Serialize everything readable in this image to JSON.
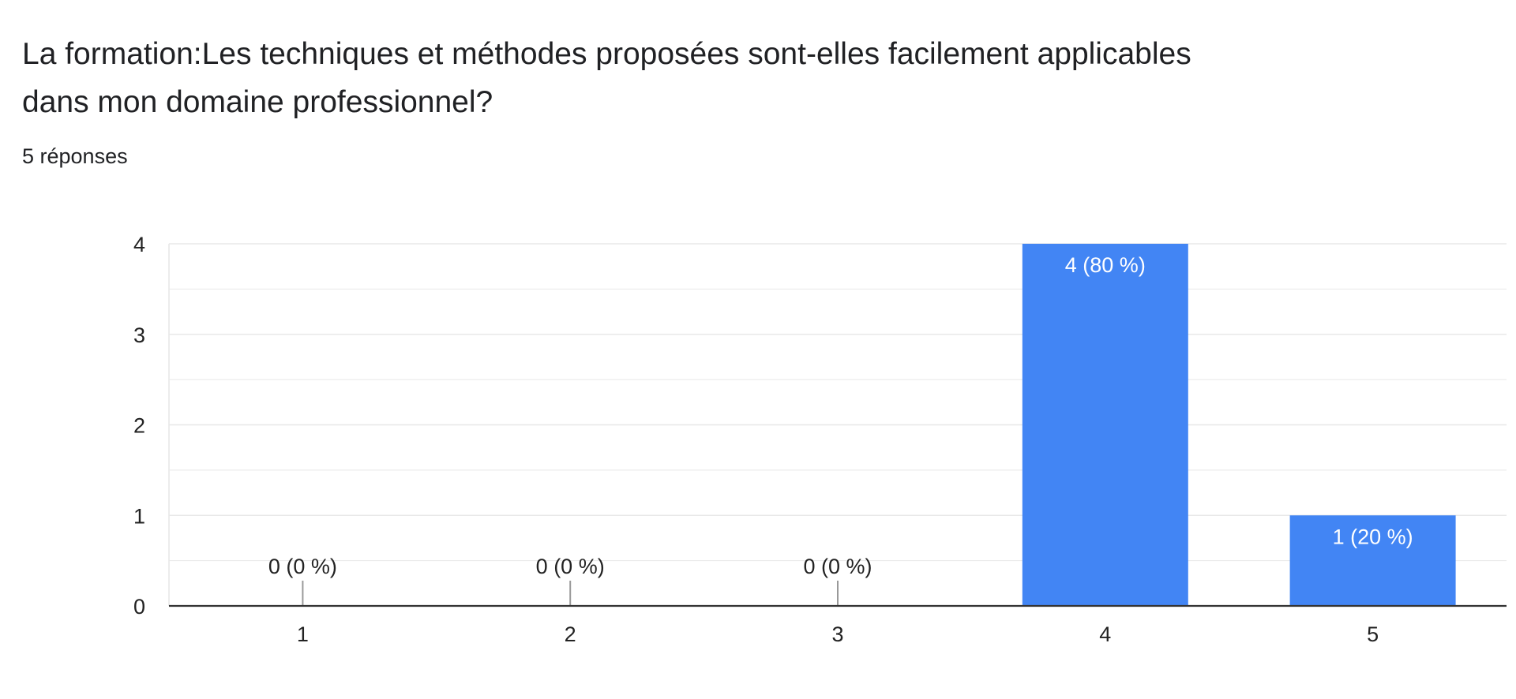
{
  "question": {
    "title": "La formation:Les techniques et méthodes proposées sont-elles facilement applicables dans mon domaine professionnel?",
    "response_count": "5 réponses"
  },
  "colors": {
    "bar": "#4285f4",
    "grid": "#e8e8e8",
    "axis": "#333333",
    "tick_text": "#222222",
    "label_inside": "#ffffff",
    "label_outside": "#222222",
    "zero_stub": "#999999"
  },
  "chart_data": {
    "type": "bar",
    "categories": [
      "1",
      "2",
      "3",
      "4",
      "5"
    ],
    "values": [
      0,
      0,
      0,
      4,
      1
    ],
    "data_labels": [
      "0 (0 %)",
      "0 (0 %)",
      "0 (0 %)",
      "4 (80 %)",
      "1 (20 %)"
    ],
    "ylim": [
      0,
      4
    ],
    "y_ticks": [
      0,
      1,
      2,
      3,
      4
    ],
    "y_minor_step": 0.5,
    "grid": true,
    "legend": "none",
    "xlabel": "",
    "ylabel": ""
  }
}
